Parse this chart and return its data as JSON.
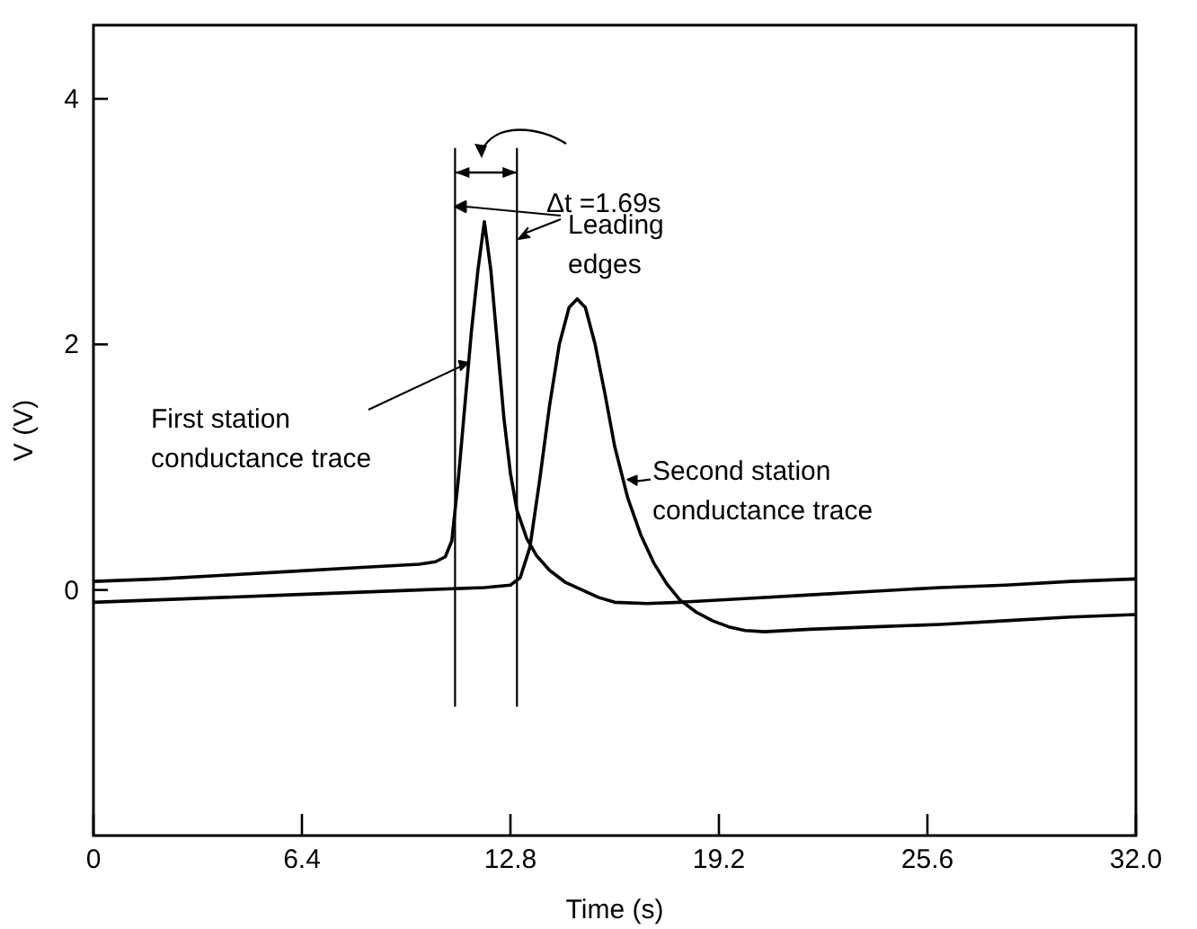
{
  "chart_data": {
    "type": "line",
    "xlabel": "Time (s)",
    "ylabel": "V (V)",
    "xlim": [
      0,
      32
    ],
    "xticks": [
      0,
      6.4,
      12.8,
      19.2,
      25.6,
      {
        "value": 32,
        "label": "32.0"
      }
    ],
    "ylim": [
      -2,
      4.6
    ],
    "yticks": [
      0,
      2,
      4
    ],
    "grid": false,
    "line_style": "solid",
    "series": [
      {
        "color": "#000000",
        "x": [
          0,
          2,
          4,
          6,
          8,
          10,
          10.5,
          10.8,
          11.0,
          11.2,
          11.4,
          11.6,
          11.8,
          12.0,
          12.2,
          12.4,
          12.6,
          12.8,
          13.0,
          13.3,
          13.6,
          14.0,
          14.5,
          15.0,
          15.5,
          16,
          17,
          18,
          20,
          22,
          24,
          26,
          28,
          30,
          32
        ],
        "values": [
          0.07,
          0.09,
          0.12,
          0.15,
          0.18,
          0.21,
          0.23,
          0.27,
          0.4,
          0.9,
          1.5,
          2.1,
          2.6,
          3.0,
          2.6,
          2.0,
          1.4,
          0.95,
          0.65,
          0.42,
          0.28,
          0.16,
          0.06,
          0.0,
          -0.06,
          -0.1,
          -0.11,
          -0.1,
          -0.07,
          -0.04,
          -0.01,
          0.02,
          0.04,
          0.07,
          0.09
        ]
      },
      {
        "color": "#000000",
        "x": [
          0,
          2,
          4,
          6,
          8,
          10,
          12,
          12.8,
          13.1,
          13.4,
          13.7,
          14.0,
          14.3,
          14.6,
          14.85,
          15.1,
          15.4,
          15.7,
          16.0,
          16.4,
          16.8,
          17.2,
          17.6,
          18.0,
          18.5,
          19,
          19.5,
          20,
          20.6,
          22,
          24,
          26,
          28,
          30,
          32
        ],
        "values": [
          -0.1,
          -0.08,
          -0.06,
          -0.04,
          -0.02,
          0.0,
          0.02,
          0.04,
          0.1,
          0.35,
          0.9,
          1.5,
          2.0,
          2.3,
          2.37,
          2.3,
          2.0,
          1.6,
          1.17,
          0.75,
          0.45,
          0.22,
          0.05,
          -0.08,
          -0.18,
          -0.25,
          -0.3,
          -0.33,
          -0.34,
          -0.32,
          -0.3,
          -0.28,
          -0.25,
          -0.22,
          -0.2
        ]
      }
    ],
    "ref_lines": [
      {
        "axis": "x",
        "value": 11.1,
        "color": "#000000"
      },
      {
        "axis": "x",
        "value": 13.0,
        "color": "#000000"
      }
    ],
    "annotations": [
      "Δt =1.69s",
      "Leading\nedges",
      {
        "text": "First station\nconductance trace",
        "x": 11.55,
        "y": 1.85
      },
      {
        "text": "Second station\nconductance trace",
        "x": 16.4,
        "y": 0.9
      }
    ]
  }
}
